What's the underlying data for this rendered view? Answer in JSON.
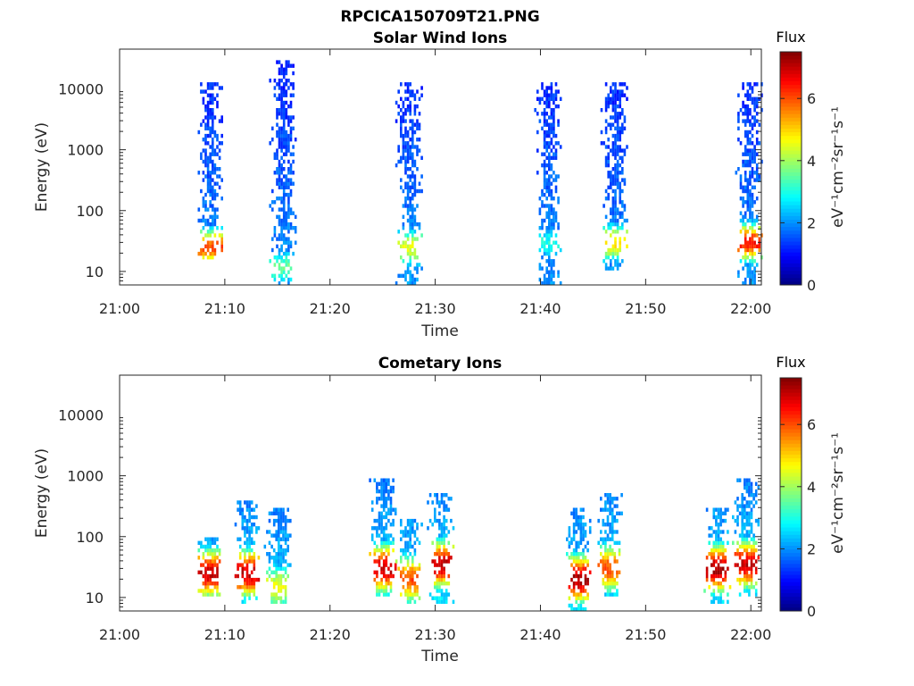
{
  "figure": {
    "title": "RPCICA150709T21.PNG"
  },
  "chart_data": [
    {
      "type": "heatmap",
      "title": "Solar Wind Ions",
      "xlabel": "Time",
      "ylabel": "Energy (eV)",
      "x_ticks": [
        "21:00",
        "21:10",
        "21:20",
        "21:30",
        "21:40",
        "21:50",
        "22:00"
      ],
      "x_range": [
        "21:00",
        "22:01"
      ],
      "y_scale": "log",
      "y_ticks": [
        "10",
        "100",
        "1000",
        "10000"
      ],
      "y_range": [
        6,
        45000
      ],
      "colorbar": {
        "title": "Flux",
        "label": "eV⁻¹cm⁻²sr⁻¹s⁻¹",
        "ticks": [
          "0",
          "2",
          "4",
          "6"
        ],
        "range": [
          0,
          7.5
        ],
        "colormap": "jet"
      },
      "bursts": [
        {
          "t": "21:08.5",
          "e_low": 15,
          "e_high": 12000,
          "peak_flux": 6,
          "peak_e": 25
        },
        {
          "t": "21:15.5",
          "e_low": 6,
          "e_high": 30000,
          "peak_flux": 3.5,
          "peak_e": 12
        },
        {
          "t": "21:27.5",
          "e_low": 6,
          "e_high": 12000,
          "peak_flux": 4.5,
          "peak_e": 25
        },
        {
          "t": "21:40.7",
          "e_low": 6,
          "e_high": 12000,
          "peak_flux": 3,
          "peak_e": 30
        },
        {
          "t": "21:47",
          "e_low": 10,
          "e_high": 12000,
          "peak_flux": 5,
          "peak_e": 30
        },
        {
          "t": "21:59.8",
          "e_low": 6,
          "e_high": 12000,
          "peak_flux": 6.5,
          "peak_e": 30
        }
      ]
    },
    {
      "type": "heatmap",
      "title": "Cometary Ions",
      "xlabel": "Time",
      "ylabel": "Energy (eV)",
      "x_ticks": [
        "21:00",
        "21:10",
        "21:20",
        "21:30",
        "21:40",
        "21:50",
        "22:00"
      ],
      "x_range": [
        "21:00",
        "22:01"
      ],
      "y_scale": "log",
      "y_ticks": [
        "10",
        "100",
        "1000",
        "10000"
      ],
      "y_range": [
        6,
        45000
      ],
      "colorbar": {
        "title": "Flux",
        "label": "eV⁻¹cm⁻²sr⁻¹s⁻¹",
        "ticks": [
          "0",
          "2",
          "4",
          "6"
        ],
        "range": [
          0,
          7.5
        ],
        "colormap": "jet"
      },
      "bursts": [
        {
          "t": "21:08.5",
          "e_low": 10,
          "e_high": 100,
          "peak_flux": 7,
          "peak_e": 25
        },
        {
          "t": "21:12",
          "e_low": 8,
          "e_high": 400,
          "peak_flux": 7,
          "peak_e": 25
        },
        {
          "t": "21:15",
          "e_low": 8,
          "e_high": 300,
          "peak_flux": 4.5,
          "peak_e": 15
        },
        {
          "t": "21:25",
          "e_low": 10,
          "e_high": 900,
          "peak_flux": 7,
          "peak_e": 30
        },
        {
          "t": "21:27.5",
          "e_low": 8,
          "e_high": 200,
          "peak_flux": 6,
          "peak_e": 20
        },
        {
          "t": "21:30.5",
          "e_low": 8,
          "e_high": 500,
          "peak_flux": 7,
          "peak_e": 35
        },
        {
          "t": "21:43.5",
          "e_low": 6,
          "e_high": 300,
          "peak_flux": 7.2,
          "peak_e": 20
        },
        {
          "t": "21:46.5",
          "e_low": 10,
          "e_high": 500,
          "peak_flux": 6,
          "peak_e": 30
        },
        {
          "t": "21:56.8",
          "e_low": 8,
          "e_high": 300,
          "peak_flux": 7.2,
          "peak_e": 30
        },
        {
          "t": "21:59.5",
          "e_low": 10,
          "e_high": 900,
          "peak_flux": 7,
          "peak_e": 35
        }
      ]
    }
  ]
}
